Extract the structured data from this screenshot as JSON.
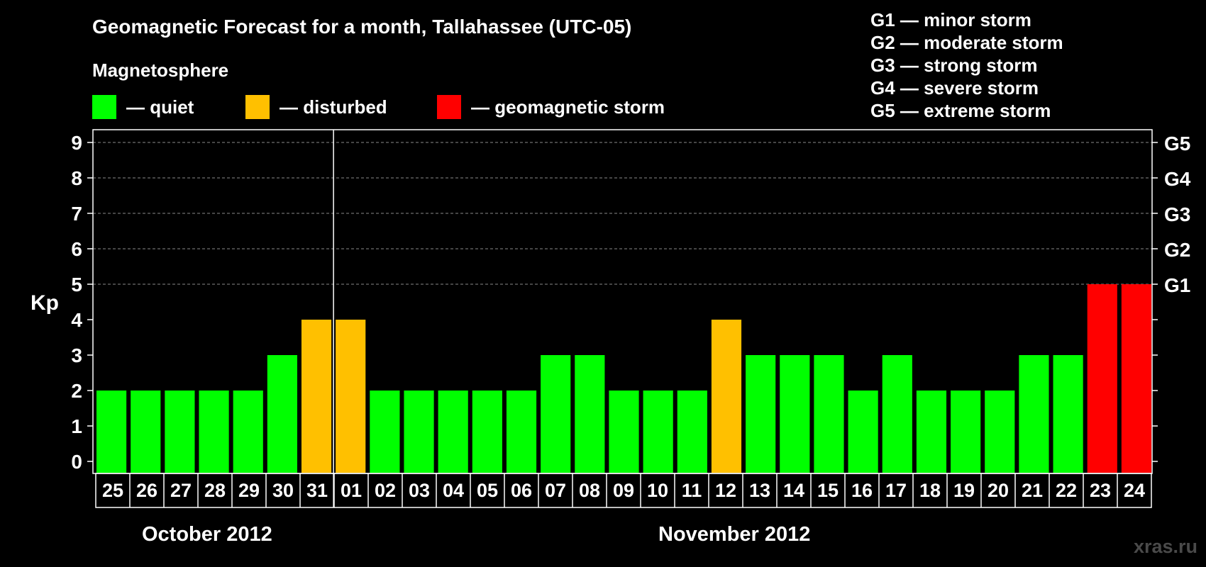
{
  "chart_data": {
    "type": "bar",
    "title": "Geomagnetic Forecast for a month, Tallahassee (UTC-05)",
    "ylabel": "Kp",
    "ylim": [
      0,
      9
    ],
    "yticks": [
      "0",
      "1",
      "2",
      "3",
      "4",
      "5",
      "6",
      "7",
      "8",
      "9"
    ],
    "right_axis_labels": [
      {
        "kp": 5,
        "label": "G1"
      },
      {
        "kp": 6,
        "label": "G2"
      },
      {
        "kp": 7,
        "label": "G3"
      },
      {
        "kp": 8,
        "label": "G4"
      },
      {
        "kp": 9,
        "label": "G5"
      }
    ],
    "categories": [
      "25",
      "26",
      "27",
      "28",
      "29",
      "30",
      "31",
      "01",
      "02",
      "03",
      "04",
      "05",
      "06",
      "07",
      "08",
      "09",
      "10",
      "11",
      "12",
      "13",
      "14",
      "15",
      "16",
      "17",
      "18",
      "19",
      "20",
      "21",
      "22",
      "23",
      "24"
    ],
    "values": [
      2,
      2,
      2,
      2,
      2,
      3,
      4,
      4,
      2,
      2,
      2,
      2,
      2,
      3,
      3,
      2,
      2,
      2,
      4,
      3,
      3,
      3,
      2,
      3,
      2,
      2,
      2,
      3,
      3,
      5,
      5
    ],
    "status": [
      "quiet",
      "quiet",
      "quiet",
      "quiet",
      "quiet",
      "quiet",
      "disturbed",
      "disturbed",
      "quiet",
      "quiet",
      "quiet",
      "quiet",
      "quiet",
      "quiet",
      "quiet",
      "quiet",
      "quiet",
      "quiet",
      "disturbed",
      "quiet",
      "quiet",
      "quiet",
      "quiet",
      "quiet",
      "quiet",
      "quiet",
      "quiet",
      "quiet",
      "quiet",
      "storm",
      "storm"
    ],
    "month_labels": [
      "October 2012",
      "November 2012"
    ],
    "grid": true
  },
  "legend": {
    "heading": "Magnetosphere",
    "items": [
      {
        "key": "quiet",
        "label": "— quiet",
        "color": "#00ff00"
      },
      {
        "key": "disturbed",
        "label": "— disturbed",
        "color": "#ffc000"
      },
      {
        "key": "storm",
        "label": "— geomagnetic storm",
        "color": "#ff0000"
      }
    ]
  },
  "g_scale": [
    "G1 — minor storm",
    "G2 — moderate storm",
    "G3 — strong storm",
    "G4 — severe storm",
    "G5 — extreme storm"
  ],
  "watermark": "xras.ru"
}
